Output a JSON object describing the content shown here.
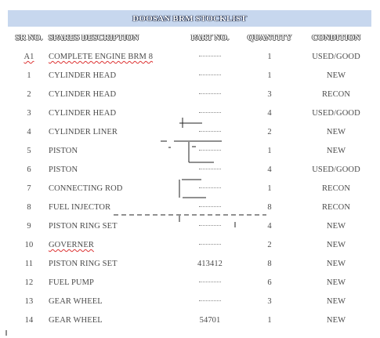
{
  "title": "DOOSAN BRM STOCKLIST",
  "headers": {
    "sr": "SR NO.",
    "desc": "SPARES DESCRIPTION",
    "part": "PART NO.",
    "qty": "QUANTITY",
    "cond": "CONDITION"
  },
  "rows": [
    {
      "sr": "A1",
      "desc": "COMPLETE ENGINE BRM 8",
      "part": "",
      "qty": "1",
      "cond": "USED/GOOD"
    },
    {
      "sr": "1",
      "desc": "CYLINDER HEAD",
      "part": "",
      "qty": "1",
      "cond": "NEW"
    },
    {
      "sr": "2",
      "desc": "CYLINDER HEAD",
      "part": "",
      "qty": "3",
      "cond": "RECON"
    },
    {
      "sr": "3",
      "desc": "CYLINDER HEAD",
      "part": "",
      "qty": "4",
      "cond": "USED/GOOD"
    },
    {
      "sr": "4",
      "desc": "CYLINDER LINER",
      "part": "",
      "qty": "2",
      "cond": "NEW"
    },
    {
      "sr": "5",
      "desc": "PISTON",
      "part": "",
      "qty": "1",
      "cond": "NEW"
    },
    {
      "sr": "6",
      "desc": "PISTON",
      "part": "",
      "qty": "4",
      "cond": "USED/GOOD"
    },
    {
      "sr": "7",
      "desc": "CONNECTING ROD",
      "part": "",
      "qty": "1",
      "cond": "RECON"
    },
    {
      "sr": "8",
      "desc": "FUEL INJECTOR",
      "part": "",
      "qty": "8",
      "cond": "RECON"
    },
    {
      "sr": "9",
      "desc": "PISTON RING SET",
      "part": "",
      "qty": "4",
      "cond": "NEW"
    },
    {
      "sr": "10",
      "desc": "GOVERNER",
      "part": "",
      "qty": "2",
      "cond": "NEW"
    },
    {
      "sr": "11",
      "desc": "PISTON RING SET",
      "part": "413412",
      "qty": "8",
      "cond": "NEW"
    },
    {
      "sr": "12",
      "desc": "FUEL PUMP",
      "part": "",
      "qty": "6",
      "cond": "NEW"
    },
    {
      "sr": "13",
      "desc": "GEAR WHEEL",
      "part": "",
      "qty": "3",
      "cond": "NEW"
    },
    {
      "sr": "14",
      "desc": "GEAR WHEEL",
      "part": "54701",
      "qty": "1",
      "cond": "NEW"
    }
  ]
}
